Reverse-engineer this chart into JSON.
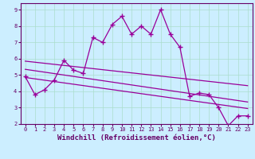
{
  "xlabel": "Windchill (Refroidissement éolien,°C)",
  "bg_color": "#cceeff",
  "line_color": "#990099",
  "grid_color": "#aaddcc",
  "axis_color": "#660066",
  "xlim": [
    -0.5,
    23.5
  ],
  "ylim": [
    2,
    9.4
  ],
  "xticks": [
    0,
    1,
    2,
    3,
    4,
    5,
    6,
    7,
    8,
    9,
    10,
    11,
    12,
    13,
    14,
    15,
    16,
    17,
    18,
    19,
    20,
    21,
    22,
    23
  ],
  "yticks": [
    2,
    3,
    4,
    5,
    6,
    7,
    8,
    9
  ],
  "data_x": [
    0,
    1,
    2,
    3,
    4,
    5,
    6,
    7,
    8,
    9,
    10,
    11,
    12,
    13,
    14,
    15,
    16,
    17,
    18,
    19,
    20,
    21,
    22,
    23
  ],
  "data_y": [
    4.9,
    3.8,
    4.1,
    4.7,
    5.9,
    5.3,
    5.1,
    7.3,
    7.0,
    8.1,
    8.6,
    7.5,
    8.0,
    7.5,
    9.0,
    7.5,
    6.7,
    3.7,
    3.9,
    3.8,
    3.0,
    1.9,
    2.5,
    2.5
  ],
  "trend1_x": [
    0,
    23
  ],
  "trend1_y": [
    5.85,
    4.35
  ],
  "trend2_x": [
    0,
    23
  ],
  "trend2_y": [
    5.35,
    3.35
  ],
  "trend3_x": [
    0,
    23
  ],
  "trend3_y": [
    4.85,
    2.95
  ],
  "marker": "+",
  "markersize": 4,
  "markeredgewidth": 1.0,
  "linewidth": 0.9,
  "tick_fontsize": 5,
  "xlabel_fontsize": 6.5
}
